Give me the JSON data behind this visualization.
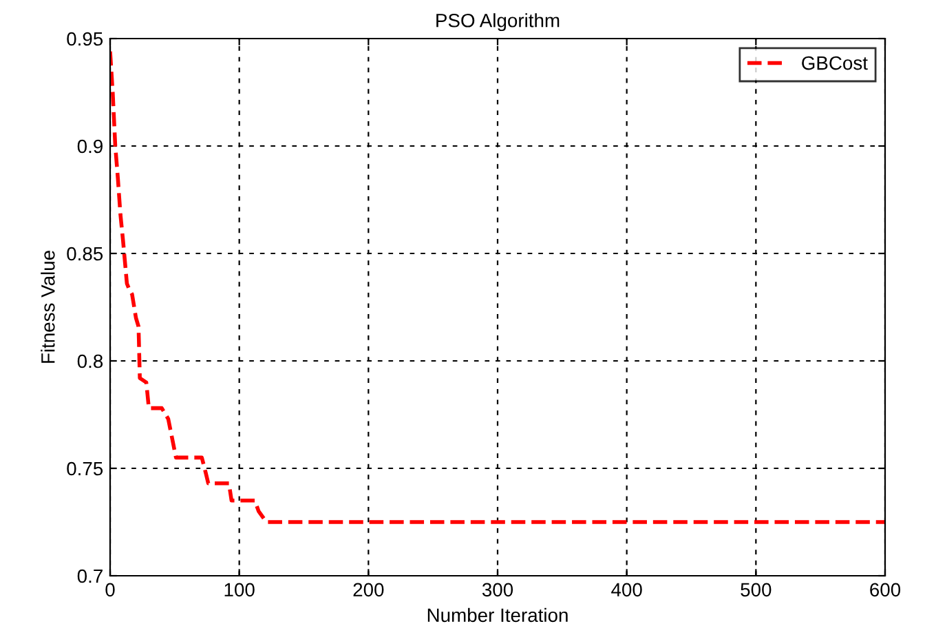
{
  "chart_data": {
    "type": "line",
    "title": "PSO Algorithm",
    "xlabel": "Number Iteration",
    "ylabel": "Fitness Value",
    "xlim": [
      0,
      600
    ],
    "xticks": [
      0,
      100,
      200,
      300,
      400,
      500,
      600
    ],
    "ylim": [
      0.7,
      0.95
    ],
    "yticks": [
      0.7,
      0.75,
      0.8,
      0.85,
      0.9,
      0.95
    ],
    "grid": true,
    "legend": "top right",
    "line_style": "dashed",
    "marker": "none",
    "series": [
      {
        "name": "GBCost",
        "color": "#ff0000",
        "x": [
          0,
          2,
          4,
          6,
          8,
          10,
          13,
          15,
          17,
          20,
          22,
          23,
          28,
          30,
          35,
          40,
          45,
          48,
          51,
          60,
          71,
          74,
          76,
          85,
          92,
          94,
          100,
          112,
          115,
          121,
          200,
          300,
          400,
          500,
          600
        ],
        "values": [
          0.944,
          0.925,
          0.9,
          0.885,
          0.868,
          0.856,
          0.836,
          0.833,
          0.831,
          0.82,
          0.816,
          0.792,
          0.79,
          0.778,
          0.778,
          0.778,
          0.773,
          0.764,
          0.755,
          0.755,
          0.755,
          0.748,
          0.743,
          0.743,
          0.743,
          0.735,
          0.735,
          0.735,
          0.73,
          0.725,
          0.725,
          0.725,
          0.725,
          0.725,
          0.725
        ]
      }
    ]
  }
}
